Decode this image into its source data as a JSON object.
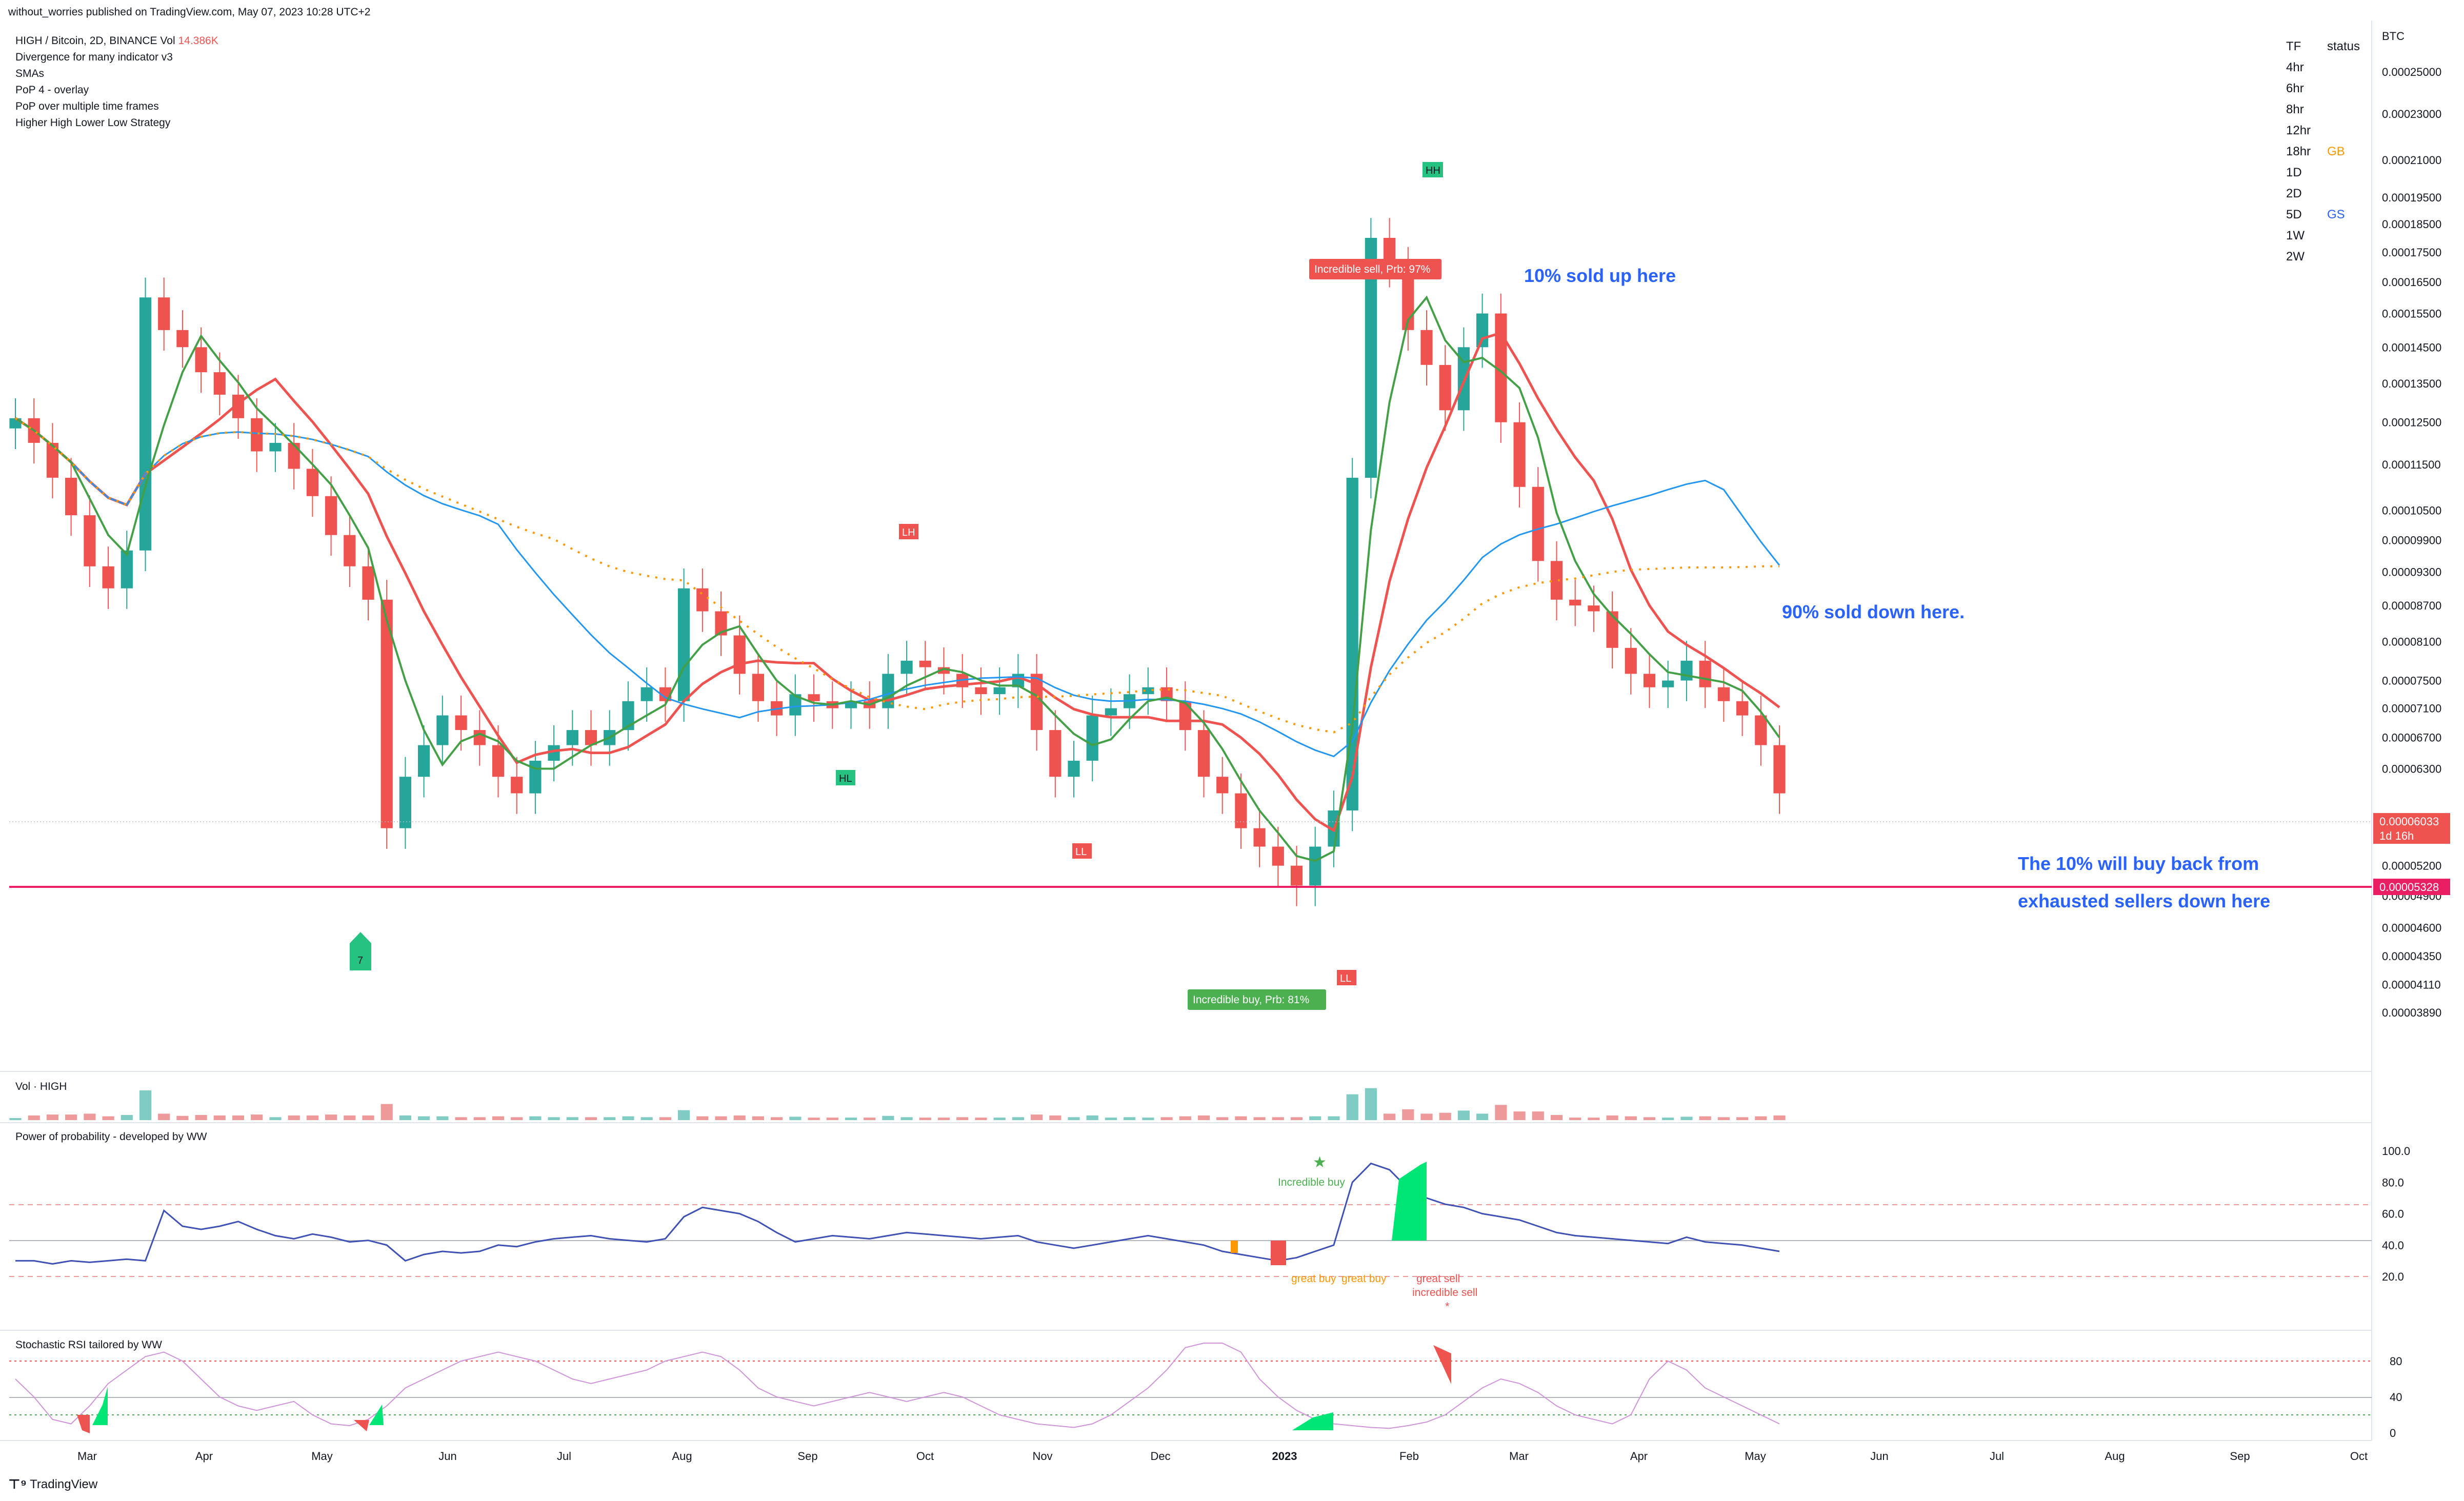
{
  "header": {
    "published": "without_worries published on TradingView.com, May 07, 2023 10:28 UTC+2"
  },
  "legend": {
    "symbol": "HIGH / Bitcoin, 2D, BINANCE",
    "vol_label": "Vol",
    "vol_value": "14.386K",
    "indicators": [
      "Divergence for many indicator v3",
      "SMAs",
      "PoP 4 - overlay",
      "PoP over multiple time frames",
      "Higher High Lower Low Strategy"
    ]
  },
  "tf_table": {
    "header": [
      "TF",
      "status"
    ],
    "rows": [
      {
        "tf": "4hr",
        "status": ""
      },
      {
        "tf": "6hr",
        "status": ""
      },
      {
        "tf": "8hr",
        "status": ""
      },
      {
        "tf": "12hr",
        "status": ""
      },
      {
        "tf": "18hr",
        "status": "GB"
      },
      {
        "tf": "1D",
        "status": ""
      },
      {
        "tf": "2D",
        "status": ""
      },
      {
        "tf": "5D",
        "status": "GS"
      },
      {
        "tf": "1W",
        "status": ""
      },
      {
        "tf": "2W",
        "status": ""
      }
    ],
    "colors": {
      "GB": "#ff9800",
      "GS": "#2962ff"
    }
  },
  "chart_data": {
    "type": "line",
    "price_scale_label": "BTC",
    "price_ticks": [
      "0.00025000",
      "0.00023000",
      "0.00021000",
      "0.00019500",
      "0.00018500",
      "0.00017500",
      "0.00016500",
      "0.00015500",
      "0.00014500",
      "0.00013500",
      "0.00012500",
      "0.00011500",
      "0.00010500",
      "0.00009900",
      "0.00009300",
      "0.00008700",
      "0.00008100",
      "0.00007500",
      "0.00007100",
      "0.00006700",
      "0.00006300",
      "0.00005500",
      "0.00005200",
      "0.00004900",
      "0.00004600",
      "0.00004350",
      "0.00004110",
      "0.00003890"
    ],
    "last_price": "0.00006033",
    "countdown": "1d 16h",
    "support_price": "0.00005328",
    "x_labels": [
      "Mar",
      "Apr",
      "May",
      "Jun",
      "Jul",
      "Aug",
      "Sep",
      "Oct",
      "Nov",
      "Dec",
      "2023",
      "Feb",
      "Mar",
      "Apr",
      "May",
      "Jun",
      "Jul",
      "Aug",
      "Sep",
      "Oct"
    ],
    "annotations": [
      {
        "text": "10% sold up here",
        "color": "#2962ff"
      },
      {
        "text": "90% sold down here.",
        "color": "#2962ff"
      },
      {
        "text": "The 10% will buy back from",
        "color": "#2962ff"
      },
      {
        "text": "exhausted sellers down here",
        "color": "#2962ff"
      }
    ],
    "signals": [
      {
        "text": "Incredible sell, Prb: 97%",
        "color": "#ef5350"
      },
      {
        "text": "Incredible buy, Prb: 81%",
        "color": "#4caf50"
      }
    ],
    "pivots": [
      "HH",
      "LH",
      "HL",
      "LL",
      "LL",
      "7"
    ],
    "close_series": [
      0.000126,
      0.00012,
      0.000112,
      0.000104,
      9.4e-05,
      9e-05,
      9.7e-05,
      0.00016,
      0.00015,
      0.000145,
      0.000138,
      0.000132,
      0.000126,
      0.000118,
      0.00012,
      0.000114,
      0.000108,
      0.0001,
      9.4e-05,
      8.8e-05,
      5.6e-05,
      6.2e-05,
      6.6e-05,
      7e-05,
      6.8e-05,
      6.6e-05,
      6.2e-05,
      6e-05,
      6.4e-05,
      6.6e-05,
      6.8e-05,
      6.6e-05,
      6.8e-05,
      7.2e-05,
      7.4e-05,
      7.2e-05,
      9e-05,
      8.6e-05,
      8.2e-05,
      7.6e-05,
      7.2e-05,
      7e-05,
      7.3e-05,
      7.2e-05,
      7.1e-05,
      7.2e-05,
      7.1e-05,
      7.6e-05,
      7.8e-05,
      7.7e-05,
      7.6e-05,
      7.4e-05,
      7.3e-05,
      7.4e-05,
      7.6e-05,
      6.8e-05,
      6.2e-05,
      6.4e-05,
      7e-05,
      7.1e-05,
      7.3e-05,
      7.4e-05,
      7.2e-05,
      6.8e-05,
      6.2e-05,
      6e-05,
      5.6e-05,
      5.4e-05,
      5.2e-05,
      5e-05,
      5.4e-05,
      5.8e-05,
      0.000112,
      0.00018,
      0.00017,
      0.00015,
      0.00014,
      0.000128,
      0.000145,
      0.000155,
      0.000125,
      0.00011,
      9.5e-05,
      8.8e-05,
      8.7e-05,
      8.6e-05,
      8e-05,
      7.6e-05,
      7.4e-05,
      7.5e-05,
      7.8e-05,
      7.4e-05,
      7.2e-05,
      7e-05,
      6.6e-05,
      6e-05
    ],
    "volume_label": "Vol · HIGH",
    "pop": {
      "title": "Power of probability - developed by WW",
      "ticks": [
        "100.0",
        "80.0",
        "60.0",
        "40.0",
        "20.0"
      ],
      "labels": [
        {
          "text": "Incredible buy",
          "color": "#4caf50"
        },
        {
          "text": "great buy",
          "color": "#ff9800"
        },
        {
          "text": "great buy",
          "color": "#ff9800"
        },
        {
          "text": "great sell",
          "color": "#ef5350"
        },
        {
          "text": "incredible sell",
          "color": "#ef5350"
        }
      ],
      "values": [
        30,
        30,
        28,
        30,
        29,
        30,
        31,
        30,
        62,
        52,
        50,
        52,
        55,
        50,
        46,
        44,
        47,
        45,
        42,
        43,
        40,
        30,
        34,
        36,
        35,
        36,
        40,
        39,
        42,
        44,
        45,
        46,
        44,
        43,
        42,
        44,
        58,
        64,
        62,
        60,
        55,
        48,
        42,
        44,
        46,
        45,
        44,
        46,
        48,
        47,
        46,
        45,
        44,
        45,
        46,
        42,
        40,
        38,
        40,
        42,
        44,
        46,
        44,
        42,
        40,
        36,
        34,
        32,
        30,
        32,
        36,
        40,
        80,
        92,
        88,
        76,
        70,
        66,
        64,
        60,
        58,
        56,
        52,
        48,
        46,
        45,
        44,
        43,
        42,
        41,
        45,
        42,
        41,
        40,
        38,
        36
      ]
    },
    "stoch": {
      "title": "Stochastic RSI tailored by WW",
      "ticks": [
        "80",
        "40",
        "0"
      ],
      "k": [
        60,
        40,
        15,
        10,
        30,
        55,
        70,
        85,
        90,
        80,
        60,
        40,
        30,
        25,
        30,
        35,
        20,
        10,
        8,
        15,
        30,
        50,
        60,
        70,
        80,
        85,
        90,
        85,
        80,
        70,
        60,
        55,
        60,
        65,
        70,
        80,
        85,
        90,
        85,
        70,
        50,
        40,
        35,
        30,
        35,
        40,
        45,
        40,
        35,
        40,
        45,
        40,
        30,
        20,
        15,
        10,
        8,
        6,
        10,
        20,
        35,
        50,
        70,
        95,
        100,
        100,
        90,
        60,
        40,
        25,
        15,
        10,
        8,
        6,
        5,
        8,
        12,
        20,
        35,
        50,
        60,
        55,
        45,
        30,
        20,
        15,
        10,
        20,
        60,
        80,
        70,
        50,
        40,
        30,
        20,
        10
      ]
    }
  }
}
